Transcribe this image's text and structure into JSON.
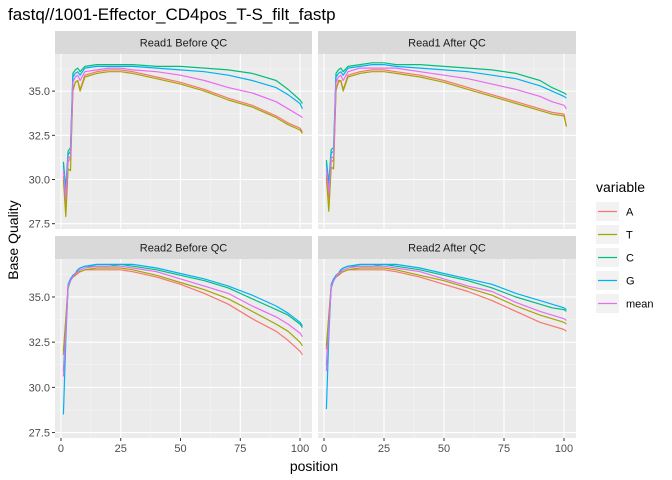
{
  "chart_data": {
    "type": "line",
    "title": "fastq//1001-Effector_CD4pos_T-S_filt_fastp",
    "xlabel": "position",
    "ylabel": "Base Quality",
    "x_ticks": [
      0,
      25,
      50,
      75,
      100
    ],
    "xlim": [
      -2.5,
      105
    ],
    "y_ticks": [
      27.5,
      30.0,
      32.5,
      35.0
    ],
    "legend_title": "variable",
    "legend_position": "right",
    "colors": {
      "A": "#F8766D",
      "T": "#A3A500",
      "C": "#00BF7D",
      "G": "#00B0F6",
      "mean": "#E76BF3"
    },
    "series_order": [
      "A",
      "T",
      "C",
      "G",
      "mean"
    ],
    "x": [
      1,
      2,
      3,
      4,
      5,
      6,
      7,
      8,
      10,
      15,
      20,
      25,
      30,
      40,
      50,
      60,
      70,
      80,
      90,
      95,
      100,
      101
    ],
    "panels": [
      {
        "label": "Read1 Before QC",
        "ylim": [
          27.2,
          37.1
        ],
        "series": [
          {
            "name": "A",
            "values": [
              30.2,
              28.5,
              31.0,
              31.2,
              35.0,
              35.5,
              35.6,
              35.1,
              35.9,
              36.1,
              36.2,
              36.2,
              36.1,
              35.8,
              35.5,
              35.1,
              34.6,
              34.2,
              33.6,
              33.2,
              32.9,
              32.7
            ]
          },
          {
            "name": "T",
            "values": [
              30.0,
              27.9,
              30.6,
              30.5,
              35.1,
              35.5,
              35.6,
              35.0,
              35.8,
              36.0,
              36.1,
              36.1,
              36.0,
              35.7,
              35.4,
              35.0,
              34.5,
              34.1,
              33.5,
              33.1,
              32.8,
              32.6
            ]
          },
          {
            "name": "C",
            "values": [
              31.0,
              29.5,
              31.6,
              31.8,
              36.0,
              36.2,
              36.3,
              36.1,
              36.4,
              36.5,
              36.5,
              36.5,
              36.5,
              36.4,
              36.4,
              36.3,
              36.2,
              36.0,
              35.6,
              35.1,
              34.5,
              34.3
            ]
          },
          {
            "name": "G",
            "values": [
              30.8,
              29.4,
              31.4,
              31.6,
              35.8,
              36.0,
              36.1,
              35.9,
              36.3,
              36.4,
              36.4,
              36.4,
              36.4,
              36.3,
              36.2,
              36.1,
              35.9,
              35.6,
              35.2,
              34.8,
              34.3,
              34.0
            ]
          },
          {
            "name": "mean",
            "values": [
              30.5,
              28.9,
              31.2,
              31.3,
              35.5,
              35.8,
              35.9,
              35.6,
              36.1,
              36.2,
              36.3,
              36.3,
              36.2,
              36.1,
              35.9,
              35.6,
              35.2,
              34.9,
              34.4,
              34.0,
              33.6,
              33.5
            ]
          }
        ]
      },
      {
        "label": "Read1 After QC",
        "ylim": [
          27.2,
          37.1
        ],
        "series": [
          {
            "name": "A",
            "values": [
              30.3,
              28.9,
              31.0,
              31.1,
              35.0,
              35.6,
              35.6,
              35.1,
              35.9,
              36.1,
              36.2,
              36.2,
              36.1,
              35.9,
              35.6,
              35.2,
              34.8,
              34.4,
              34.0,
              33.8,
              33.7,
              33.0
            ]
          },
          {
            "name": "T",
            "values": [
              30.1,
              28.2,
              30.7,
              30.6,
              35.1,
              35.5,
              35.6,
              35.0,
              35.8,
              36.0,
              36.1,
              36.1,
              36.0,
              35.8,
              35.5,
              35.1,
              34.7,
              34.3,
              33.9,
              33.7,
              33.6,
              33.0
            ]
          },
          {
            "name": "C",
            "values": [
              31.1,
              29.8,
              31.7,
              31.8,
              36.0,
              36.2,
              36.3,
              36.1,
              36.4,
              36.5,
              36.6,
              36.6,
              36.5,
              36.5,
              36.4,
              36.3,
              36.2,
              36.0,
              35.6,
              35.2,
              34.9,
              34.8
            ]
          },
          {
            "name": "G",
            "values": [
              30.9,
              29.6,
              31.5,
              31.6,
              35.8,
              36.0,
              36.1,
              35.9,
              36.3,
              36.4,
              36.5,
              36.5,
              36.4,
              36.3,
              36.2,
              36.1,
              35.9,
              35.7,
              35.3,
              35.0,
              34.7,
              34.6
            ]
          },
          {
            "name": "mean",
            "values": [
              30.6,
              29.2,
              31.2,
              31.3,
              35.5,
              35.8,
              35.9,
              35.6,
              36.1,
              36.3,
              36.3,
              36.3,
              36.3,
              36.1,
              35.9,
              35.7,
              35.4,
              35.1,
              34.7,
              34.4,
              34.2,
              34.0
            ]
          }
        ]
      },
      {
        "label": "Read2 Before QC",
        "ylim": [
          27.2,
          37.1
        ],
        "series": [
          {
            "name": "A",
            "values": [
              31.8,
              33.6,
              35.6,
              35.9,
              36.1,
              36.2,
              36.3,
              36.4,
              36.5,
              36.5,
              36.5,
              36.5,
              36.4,
              36.1,
              35.7,
              35.2,
              34.6,
              33.8,
              33.1,
              32.6,
              32.0,
              31.8
            ]
          },
          {
            "name": "T",
            "values": [
              32.0,
              33.8,
              35.6,
              36.0,
              36.1,
              36.2,
              36.4,
              36.4,
              36.5,
              36.6,
              36.6,
              36.6,
              36.5,
              36.2,
              35.8,
              35.4,
              34.9,
              34.2,
              33.5,
              33.1,
              32.5,
              32.3
            ]
          },
          {
            "name": "C",
            "values": [
              30.9,
              33.2,
              35.5,
              35.9,
              36.2,
              36.3,
              36.5,
              36.6,
              36.7,
              36.7,
              36.7,
              36.8,
              36.7,
              36.5,
              36.2,
              35.9,
              35.5,
              34.9,
              34.3,
              34.0,
              33.5,
              33.3
            ]
          },
          {
            "name": "G",
            "values": [
              28.5,
              32.6,
              35.7,
              36.0,
              36.2,
              36.3,
              36.5,
              36.6,
              36.7,
              36.8,
              36.8,
              36.8,
              36.8,
              36.6,
              36.3,
              36.0,
              35.6,
              35.1,
              34.5,
              34.1,
              33.6,
              33.4
            ]
          },
          {
            "name": "mean",
            "values": [
              30.6,
              33.1,
              35.6,
              35.9,
              36.1,
              36.3,
              36.4,
              36.5,
              36.6,
              36.7,
              36.7,
              36.7,
              36.6,
              36.4,
              36.0,
              35.6,
              35.2,
              34.5,
              33.9,
              33.5,
              33.0,
              32.8
            ]
          }
        ]
      },
      {
        "label": "Read2 After QC",
        "ylim": [
          27.2,
          37.1
        ],
        "series": [
          {
            "name": "A",
            "values": [
              32.1,
              33.8,
              35.6,
              35.9,
              36.1,
              36.2,
              36.3,
              36.4,
              36.5,
              36.5,
              36.5,
              36.5,
              36.4,
              36.1,
              35.7,
              35.3,
              34.8,
              34.2,
              33.6,
              33.4,
              33.2,
              33.1
            ]
          },
          {
            "name": "T",
            "values": [
              32.3,
              34.0,
              35.6,
              36.0,
              36.1,
              36.2,
              36.4,
              36.4,
              36.5,
              36.6,
              36.6,
              36.6,
              36.5,
              36.2,
              35.9,
              35.5,
              35.1,
              34.5,
              34.0,
              33.8,
              33.6,
              33.5
            ]
          },
          {
            "name": "C",
            "values": [
              31.2,
              33.4,
              35.5,
              35.9,
              36.2,
              36.3,
              36.5,
              36.6,
              36.7,
              36.7,
              36.7,
              36.8,
              36.7,
              36.5,
              36.2,
              35.9,
              35.5,
              35.0,
              34.6,
              34.4,
              34.3,
              34.2
            ]
          },
          {
            "name": "G",
            "values": [
              28.8,
              32.8,
              35.7,
              36.0,
              36.2,
              36.3,
              36.5,
              36.6,
              36.7,
              36.8,
              36.8,
              36.8,
              36.8,
              36.6,
              36.3,
              36.0,
              35.7,
              35.2,
              34.8,
              34.6,
              34.4,
              34.3
            ]
          },
          {
            "name": "mean",
            "values": [
              30.9,
              33.3,
              35.6,
              35.9,
              36.1,
              36.3,
              36.4,
              36.5,
              36.6,
              36.7,
              36.7,
              36.7,
              36.6,
              36.4,
              36.0,
              35.6,
              35.3,
              34.7,
              34.2,
              34.0,
              33.8,
              33.7
            ]
          }
        ]
      }
    ]
  }
}
